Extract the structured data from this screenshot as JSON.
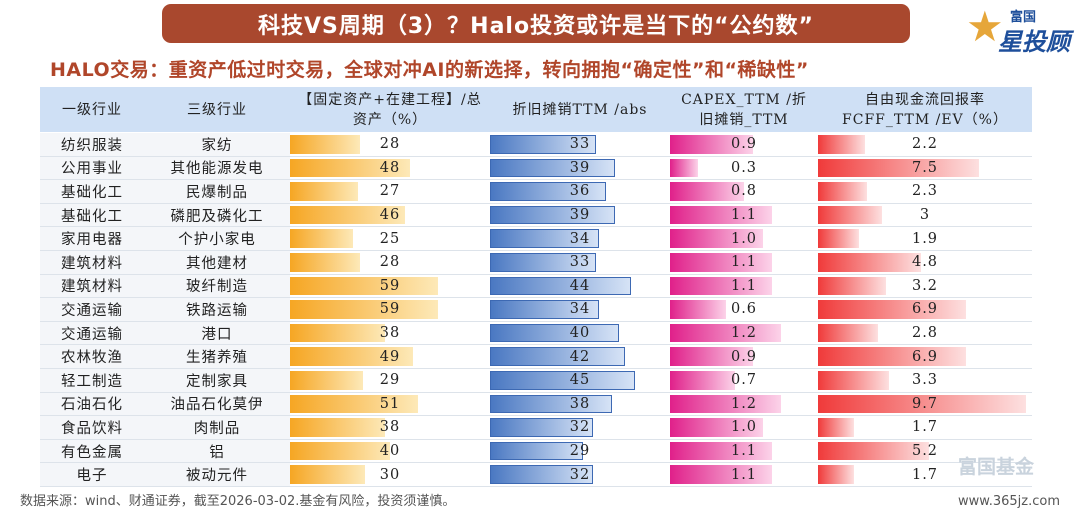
{
  "title": "科技VS周期（3）？Halo投资或许是当下的“公约数”",
  "subtitle": "HALO交易：重资产低过时交易，全球对冲AI的新选择，转向拥抱“确定性”和“稀缺性”",
  "logo": {
    "top": "富国",
    "main": "星投顾"
  },
  "colors": {
    "banner": "#a9482e",
    "fixed_assets": "#f6a623",
    "depreciation": "#4a78c2",
    "capex_ratio": "#e0208a",
    "fcff": "#f03a3a"
  },
  "table": {
    "headers": [
      "一级行业",
      "三级行业",
      "【固定资产+在建工程】/总资产（%）",
      "折旧摊销TTM /abs",
      "CAPEX_TTM /折旧摊销_TTM",
      "自由现金流回报率FCFF_TTM /EV（%）"
    ],
    "rows": [
      {
        "l1": "纺织服装",
        "l3": "家纺",
        "fa": "28",
        "da": "33",
        "capex": "0.9",
        "fcff": "2.2"
      },
      {
        "l1": "公用事业",
        "l3": "其他能源发电",
        "fa": "48",
        "da": "39",
        "capex": "0.3",
        "fcff": "7.5"
      },
      {
        "l1": "基础化工",
        "l3": "民爆制品",
        "fa": "27",
        "da": "36",
        "capex": "0.8",
        "fcff": "2.3"
      },
      {
        "l1": "基础化工",
        "l3": "磷肥及磷化工",
        "fa": "46",
        "da": "39",
        "capex": "1.1",
        "fcff": "3"
      },
      {
        "l1": "家用电器",
        "l3": "个护小家电",
        "fa": "25",
        "da": "34",
        "capex": "1.0",
        "fcff": "1.9"
      },
      {
        "l1": "建筑材料",
        "l3": "其他建材",
        "fa": "28",
        "da": "33",
        "capex": "1.1",
        "fcff": "4.8"
      },
      {
        "l1": "建筑材料",
        "l3": "玻纤制造",
        "fa": "59",
        "da": "44",
        "capex": "1.1",
        "fcff": "3.2"
      },
      {
        "l1": "交通运输",
        "l3": "铁路运输",
        "fa": "59",
        "da": "34",
        "capex": "0.6",
        "fcff": "6.9"
      },
      {
        "l1": "交通运输",
        "l3": "港口",
        "fa": "38",
        "da": "40",
        "capex": "1.2",
        "fcff": "2.8"
      },
      {
        "l1": "农林牧渔",
        "l3": "生猪养殖",
        "fa": "49",
        "da": "42",
        "capex": "0.9",
        "fcff": "6.9"
      },
      {
        "l1": "轻工制造",
        "l3": "定制家具",
        "fa": "29",
        "da": "45",
        "capex": "0.7",
        "fcff": "3.3"
      },
      {
        "l1": "石油石化",
        "l3": "油品石化莫伊",
        "fa": "51",
        "da": "38",
        "capex": "1.2",
        "fcff": "9.7"
      },
      {
        "l1": "食品饮料",
        "l3": "肉制品",
        "fa": "38",
        "da": "32",
        "capex": "1.0",
        "fcff": "1.7"
      },
      {
        "l1": "有色金属",
        "l3": "铝",
        "fa": "40",
        "da": "29",
        "capex": "1.1",
        "fcff": "5.2"
      },
      {
        "l1": "电子",
        "l3": "被动元件",
        "fa": "30",
        "da": "32",
        "capex": "1.1",
        "fcff": "1.7"
      }
    ]
  },
  "source": "数据来源：wind、财通证券，截至2026-03-02.基金有风险，投资须谨慎。",
  "watermark": "富国基金",
  "site": "www.365jz.com"
}
